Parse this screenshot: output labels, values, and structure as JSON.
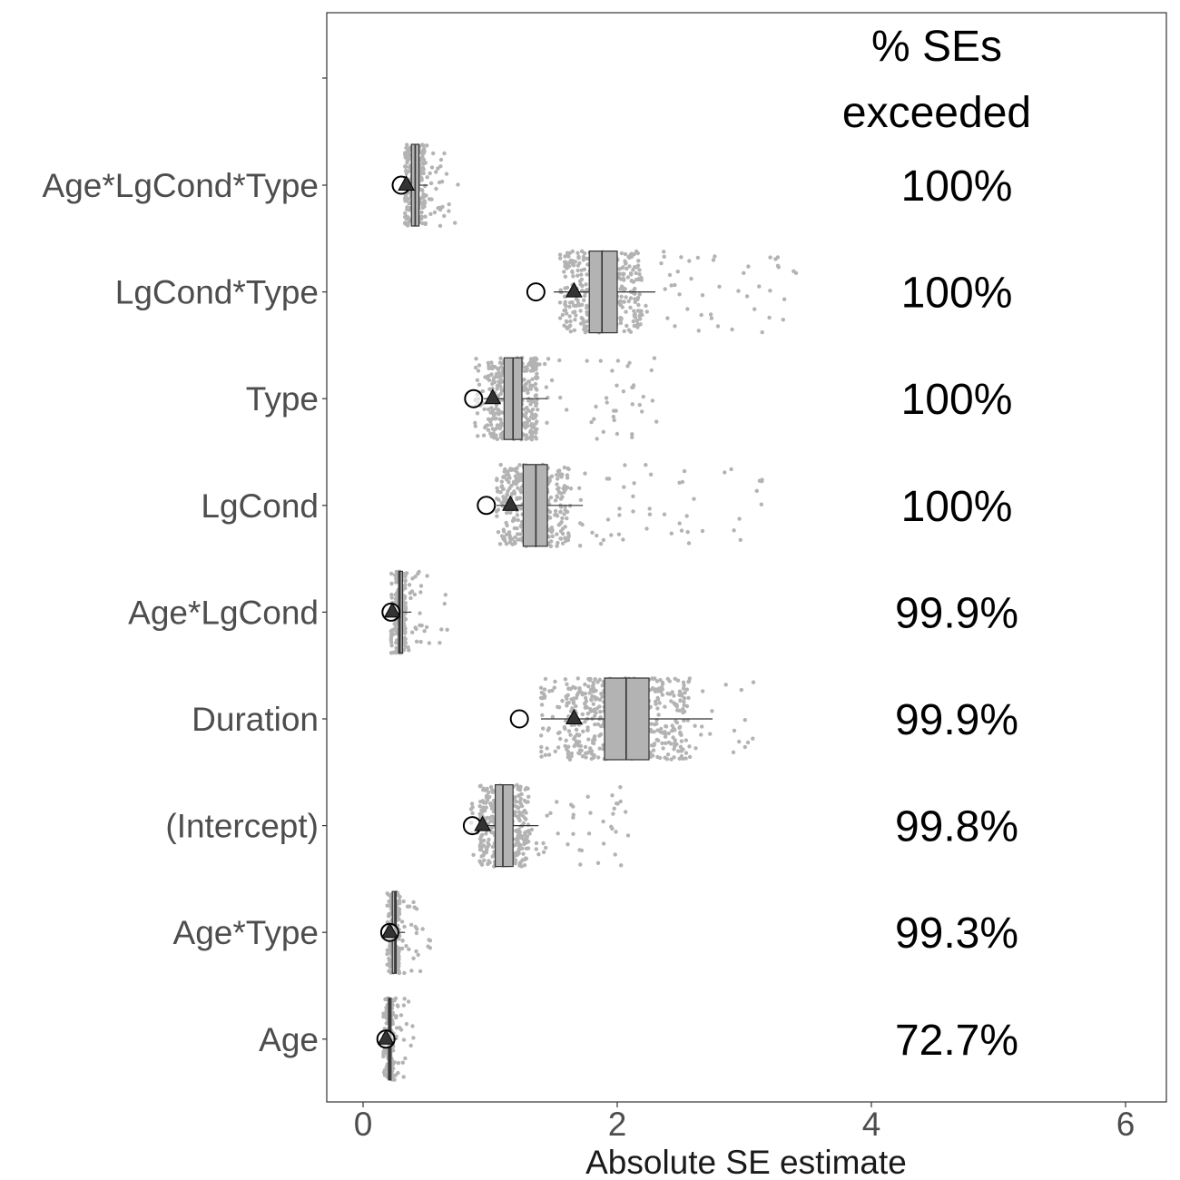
{
  "chart_data": {
    "type": "boxplot",
    "xlabel": "Absolute SE estimate",
    "xlim": [
      -0.3,
      6.3
    ],
    "x_ticks": [
      0,
      2,
      4,
      6
    ],
    "x_tick_labels": [
      "0",
      "2",
      "4",
      "6"
    ],
    "grid": false,
    "column_header": [
      "% SEs",
      "exceeded"
    ],
    "legend": "none",
    "colors": {
      "points": "#b3b3b3",
      "box_fill": "#b3b3b3",
      "box_stroke": "#333333",
      "triangle": "#333333",
      "circle_stroke": "#000000",
      "circle_fill": "#ffffff"
    },
    "categories": [
      {
        "label": "Age*LgCond*Type",
        "pct": "100%",
        "box": {
          "min": 0.33,
          "q1": 0.38,
          "median": 0.41,
          "q3": 0.44,
          "max": 0.51
        },
        "spread": [
          0.33,
          0.75
        ],
        "n_points": 260,
        "triangle": 0.34,
        "circle": 0.3
      },
      {
        "label": "LgCond*Type",
        "pct": "100%",
        "box": {
          "min": 1.5,
          "q1": 1.78,
          "median": 1.88,
          "q3": 2.0,
          "max": 2.3
        },
        "spread": [
          1.55,
          3.45
        ],
        "n_points": 420,
        "triangle": 1.66,
        "circle": 1.36
      },
      {
        "label": "Type",
        "pct": "100%",
        "box": {
          "min": 0.95,
          "q1": 1.11,
          "median": 1.18,
          "q3": 1.25,
          "max": 1.45
        },
        "spread": [
          0.88,
          2.35
        ],
        "n_points": 380,
        "triangle": 1.02,
        "circle": 0.87
      },
      {
        "label": "LgCond",
        "pct": "100%",
        "box": {
          "min": 1.05,
          "q1": 1.26,
          "median": 1.36,
          "q3": 1.45,
          "max": 1.73
        },
        "spread": [
          1.05,
          3.15
        ],
        "n_points": 400,
        "triangle": 1.16,
        "circle": 0.97
      },
      {
        "label": "Age*LgCond",
        "pct": "99.9%",
        "box": {
          "min": 0.24,
          "q1": 0.28,
          "median": 0.29,
          "q3": 0.31,
          "max": 0.38
        },
        "spread": [
          0.22,
          0.7
        ],
        "n_points": 260,
        "triangle": 0.23,
        "circle": 0.22
      },
      {
        "label": "Duration",
        "pct": "99.9%",
        "box": {
          "min": 1.4,
          "q1": 1.9,
          "median": 2.07,
          "q3": 2.25,
          "max": 2.75
        },
        "spread": [
          1.4,
          3.1
        ],
        "n_points": 520,
        "triangle": 1.66,
        "circle": 1.23
      },
      {
        "label": "(Intercept)",
        "pct": "99.8%",
        "box": {
          "min": 0.98,
          "q1": 1.04,
          "median": 1.1,
          "q3": 1.18,
          "max": 1.38
        },
        "spread": [
          0.85,
          2.1
        ],
        "n_points": 380,
        "triangle": 0.94,
        "circle": 0.86
      },
      {
        "label": "Age*Type",
        "pct": "99.3%",
        "box": {
          "min": 0.2,
          "q1": 0.23,
          "median": 0.25,
          "q3": 0.26,
          "max": 0.33
        },
        "spread": [
          0.19,
          0.53
        ],
        "n_points": 240,
        "triangle": 0.21,
        "circle": 0.21
      },
      {
        "label": "Age",
        "pct": "72.7%",
        "box": {
          "min": 0.18,
          "q1": 0.2,
          "median": 0.21,
          "q3": 0.22,
          "max": 0.27
        },
        "spread": [
          0.16,
          0.4
        ],
        "n_points": 220,
        "triangle": 0.18,
        "circle": 0.18
      }
    ]
  }
}
